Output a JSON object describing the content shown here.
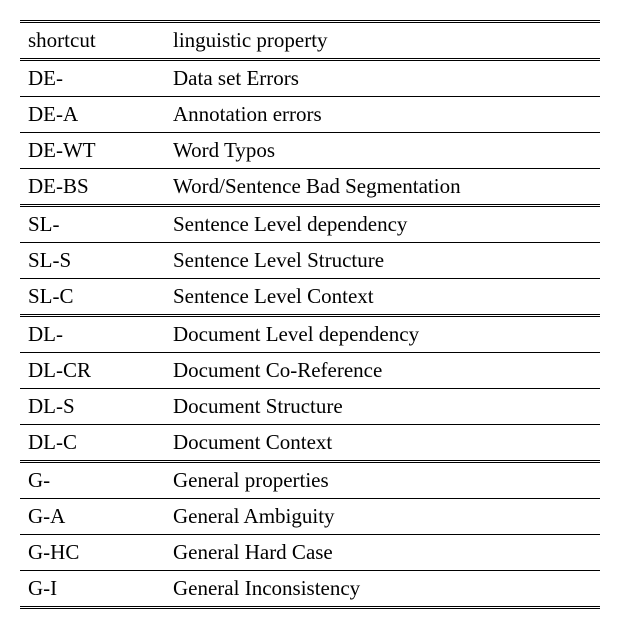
{
  "table": {
    "header": {
      "shortcut": "shortcut",
      "property": "linguistic property"
    },
    "sections": [
      {
        "rows": [
          {
            "shortcut": "DE-",
            "property": "Data set Errors"
          }
        ]
      },
      {
        "rows": [
          {
            "shortcut": "DE-A",
            "property": "Annotation errors"
          },
          {
            "shortcut": "DE-WT",
            "property": "Word Typos"
          },
          {
            "shortcut": "DE-BS",
            "property": "Word/Sentence Bad Segmentation"
          }
        ]
      },
      {
        "rows": [
          {
            "shortcut": "SL-",
            "property": "Sentence Level dependency"
          }
        ]
      },
      {
        "rows": [
          {
            "shortcut": "SL-S",
            "property": "Sentence Level Structure"
          },
          {
            "shortcut": "SL-C",
            "property": "Sentence Level Context"
          }
        ]
      },
      {
        "rows": [
          {
            "shortcut": "DL-",
            "property": "Document Level dependency"
          }
        ]
      },
      {
        "rows": [
          {
            "shortcut": "DL-CR",
            "property": "Document Co-Reference"
          },
          {
            "shortcut": "DL-S",
            "property": "Document Structure"
          },
          {
            "shortcut": "DL-C",
            "property": "Document Context"
          }
        ]
      },
      {
        "rows": [
          {
            "shortcut": "G-",
            "property": "General properties"
          }
        ]
      },
      {
        "rows": [
          {
            "shortcut": "G-A",
            "property": "General Ambiguity"
          },
          {
            "shortcut": "G-HC",
            "property": "General Hard Case"
          },
          {
            "shortcut": "G-I",
            "property": "General Inconsistency"
          }
        ]
      }
    ]
  },
  "colors": {
    "background": "#ffffff",
    "text": "#000000",
    "border": "#000000"
  },
  "typography": {
    "font_family": "Times New Roman",
    "font_size": 21
  }
}
